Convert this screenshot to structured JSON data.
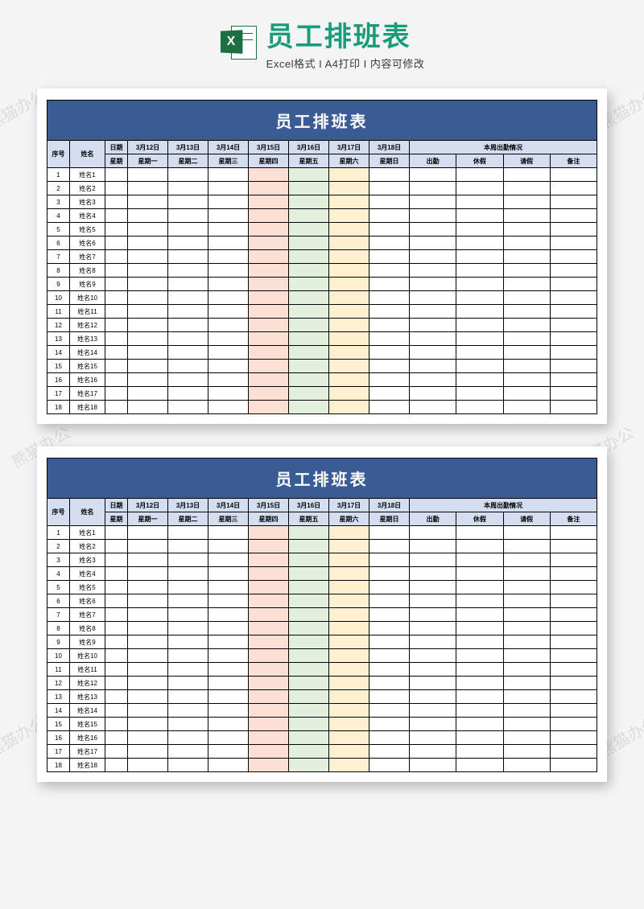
{
  "watermark_text": "熊猫办公",
  "header": {
    "icon_letter": "X",
    "title": "员工排班表",
    "subtitle": "Excel格式 I A4打印 I 内容可修改"
  },
  "colors": {
    "banner_bg": "#3a5b94",
    "header_bg": "#d5def0",
    "tint_peach": "#fadfd2",
    "tint_green": "#e2efdd",
    "tint_yellow": "#fdf1cf",
    "title_color": "#1a9b7a",
    "excel_green": "#1d6f42"
  },
  "sheet": {
    "banner": "员工排班表",
    "seq_label": "序号",
    "name_label": "姓名",
    "date_label": "日期",
    "weekday_label": "星期",
    "dates": [
      "3月12日",
      "3月13日",
      "3月14日",
      "3月15日",
      "3月16日",
      "3月17日",
      "3月18日"
    ],
    "weekdays": [
      "星期一",
      "星期二",
      "星期三",
      "星期四",
      "星期五",
      "星期六",
      "星期日"
    ],
    "tinted_day_indices": {
      "3": "tint-peach",
      "4": "tint-green",
      "5": "tint-yellow"
    },
    "attendance_header": "本周出勤情况",
    "attendance_cols": [
      "出勤",
      "休假",
      "请假",
      "备注"
    ],
    "rows": [
      {
        "seq": "1",
        "name": "姓名1"
      },
      {
        "seq": "2",
        "name": "姓名2"
      },
      {
        "seq": "3",
        "name": "姓名3"
      },
      {
        "seq": "4",
        "name": "姓名4"
      },
      {
        "seq": "5",
        "name": "姓名5"
      },
      {
        "seq": "6",
        "name": "姓名6"
      },
      {
        "seq": "7",
        "name": "姓名7"
      },
      {
        "seq": "8",
        "name": "姓名8"
      },
      {
        "seq": "9",
        "name": "姓名9"
      },
      {
        "seq": "10",
        "name": "姓名10"
      },
      {
        "seq": "11",
        "name": "姓名11"
      },
      {
        "seq": "12",
        "name": "姓名12"
      },
      {
        "seq": "13",
        "name": "姓名13"
      },
      {
        "seq": "14",
        "name": "姓名14"
      },
      {
        "seq": "15",
        "name": "姓名15"
      },
      {
        "seq": "16",
        "name": "姓名16"
      },
      {
        "seq": "17",
        "name": "姓名17"
      },
      {
        "seq": "18",
        "name": "姓名18"
      }
    ]
  }
}
